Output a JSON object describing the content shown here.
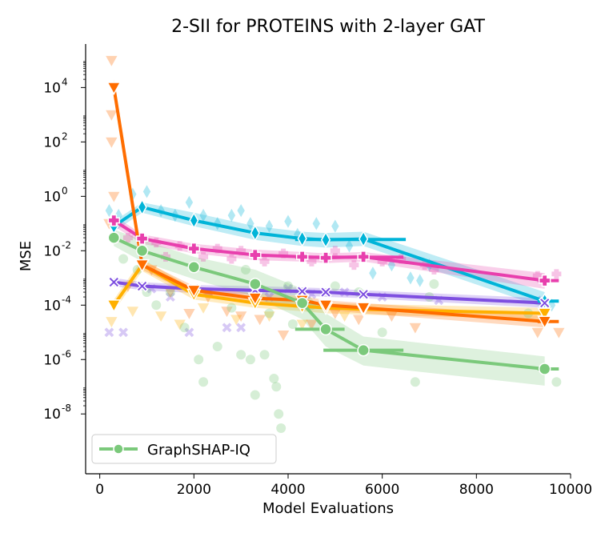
{
  "chart_data": {
    "type": "line",
    "title": "2-SII for PROTEINS with 2-layer GAT",
    "xlabel": "Model Evaluations",
    "ylabel": "MSE",
    "yscale": "log",
    "xlim": [
      -300,
      10000
    ],
    "ylim_log10": [
      -10.2,
      5.6
    ],
    "x_ticks": [
      "0",
      "2000",
      "4000",
      "6000",
      "8000",
      "10000"
    ],
    "y_ticks": [
      {
        "exp": 4,
        "label": "10",
        "sup": "4"
      },
      {
        "exp": 2,
        "label": "10",
        "sup": "2"
      },
      {
        "exp": 0,
        "label": "10",
        "sup": "0"
      },
      {
        "exp": -2,
        "label": "10",
        "sup": "-2"
      },
      {
        "exp": -4,
        "label": "10",
        "sup": "-4"
      },
      {
        "exp": -6,
        "label": "10",
        "sup": "-6"
      },
      {
        "exp": -8,
        "label": "10",
        "sup": "-8"
      }
    ],
    "legend": {
      "position": "lower-left",
      "entries": [
        "GraphSHAP-IQ"
      ]
    },
    "grid": false,
    "series": [
      {
        "name": "GraphSHAP-IQ",
        "color": "#7bc97b",
        "marker": "circle",
        "x": [
          300,
          900,
          2000,
          3300,
          4300,
          4800,
          5600,
          9450
        ],
        "y": [
          0.03,
          0.01,
          0.0025,
          0.0006,
          0.00012,
          1.3e-05,
          2.2e-06,
          4.5e-07
        ],
        "band_low": [
          0.015,
          0.004,
          0.0009,
          0.0002,
          3e-05,
          3e-06,
          6e-07,
          1.1e-07
        ],
        "band_high": [
          0.06,
          0.025,
          0.006,
          0.002,
          0.0004,
          5e-05,
          7e-06,
          1.3e-06
        ],
        "hbars": [
          {
            "x1": 4150,
            "x2": 5200,
            "y": 1.3e-05
          },
          {
            "x1": 4750,
            "x2": 6450,
            "y": 2.2e-06
          },
          {
            "x1": 9300,
            "x2": 9750,
            "y": 4.5e-07
          }
        ],
        "scatter": [
          [
            500,
            0.005
          ],
          [
            800,
            0.002
          ],
          [
            1000,
            0.0003
          ],
          [
            1200,
            0.0001
          ],
          [
            1500,
            0.0003
          ],
          [
            1800,
            1.5e-05
          ],
          [
            2100,
            1e-06
          ],
          [
            2200,
            1.5e-07
          ],
          [
            2500,
            3e-06
          ],
          [
            2800,
            8e-05
          ],
          [
            3000,
            1.5e-06
          ],
          [
            3100,
            0.002
          ],
          [
            3200,
            1e-06
          ],
          [
            3300,
            5e-08
          ],
          [
            3500,
            1.5e-06
          ],
          [
            3600,
            5e-05
          ],
          [
            3700,
            2e-07
          ],
          [
            3750,
            1e-07
          ],
          [
            3800,
            1e-08
          ],
          [
            3850,
            3e-09
          ],
          [
            4000,
            0.0005
          ],
          [
            4100,
            2e-05
          ],
          [
            4500,
            0.0001
          ],
          [
            5000,
            0.0005
          ],
          [
            5500,
            0.0003
          ],
          [
            6000,
            1e-05
          ],
          [
            6700,
            1.5e-07
          ],
          [
            7000,
            0.0002
          ],
          [
            7100,
            0.0006
          ],
          [
            9100,
            5e-05
          ],
          [
            9700,
            1.5e-07
          ]
        ]
      },
      {
        "color": "#00b4d8",
        "marker": "thin_diamond",
        "x": [
          300,
          900,
          2000,
          3300,
          4300,
          4800,
          5600,
          6500,
          9450
        ],
        "y": [
          0.08,
          0.4,
          0.13,
          0.045,
          0.028,
          0.025,
          0.027,
          null,
          0.00014
        ],
        "line_x": [
          300,
          900,
          2000,
          3300,
          4300,
          4800,
          5600,
          9450
        ],
        "line_y": [
          0.08,
          0.4,
          0.13,
          0.045,
          0.028,
          0.025,
          0.027,
          0.00014
        ],
        "band_low": [
          0.05,
          0.25,
          0.08,
          0.025,
          0.015,
          0.013,
          0.015,
          8e-05
        ],
        "band_high": [
          0.12,
          0.6,
          0.25,
          0.08,
          0.05,
          0.045,
          0.05,
          0.0003
        ],
        "hbars": [
          {
            "x1": 4150,
            "x2": 6500,
            "y": 0.026
          },
          {
            "x1": 9300,
            "x2": 9750,
            "y": 0.00014
          }
        ],
        "scatter": [
          [
            200,
            0.3
          ],
          [
            400,
            0.2
          ],
          [
            700,
            1.2
          ],
          [
            1000,
            1.5
          ],
          [
            1300,
            0.3
          ],
          [
            1600,
            0.2
          ],
          [
            1900,
            0.6
          ],
          [
            2200,
            0.2
          ],
          [
            2500,
            0.1
          ],
          [
            2800,
            0.2
          ],
          [
            3000,
            0.3
          ],
          [
            3200,
            0.1
          ],
          [
            3600,
            0.08
          ],
          [
            4000,
            0.12
          ],
          [
            4200,
            0.04
          ],
          [
            4600,
            0.1
          ],
          [
            5000,
            0.08
          ],
          [
            5300,
            0.015
          ],
          [
            5800,
            0.0015
          ],
          [
            6200,
            0.003
          ],
          [
            6600,
            0.001
          ],
          [
            6800,
            0.0008
          ],
          [
            7000,
            0.003
          ],
          [
            9600,
            0.0001
          ]
        ]
      },
      {
        "color": "#e83fad",
        "marker": "plus",
        "x": [
          300,
          900,
          2000,
          3300,
          4300,
          4800,
          5600,
          9450
        ],
        "y": [
          0.13,
          0.028,
          0.012,
          0.007,
          0.006,
          0.0055,
          0.006,
          0.0008
        ],
        "band_low": [
          0.08,
          0.018,
          0.008,
          0.0045,
          0.004,
          0.0035,
          0.004,
          0.0004
        ],
        "band_high": [
          0.2,
          0.04,
          0.018,
          0.011,
          0.009,
          0.008,
          0.009,
          0.0015
        ],
        "hbars": [
          {
            "x1": 4150,
            "x2": 6450,
            "y": 0.0058
          },
          {
            "x1": 9300,
            "x2": 9750,
            "y": 0.0008
          }
        ],
        "scatter": [
          [
            600,
            0.03
          ],
          [
            1200,
            0.02
          ],
          [
            1400,
            0.006
          ],
          [
            1700,
            0.015
          ],
          [
            2200,
            0.006
          ],
          [
            2500,
            0.012
          ],
          [
            2800,
            0.005
          ],
          [
            3000,
            0.01
          ],
          [
            3500,
            0.004
          ],
          [
            3900,
            0.008
          ],
          [
            4500,
            0.004
          ],
          [
            5000,
            0.01
          ],
          [
            5400,
            0.003
          ],
          [
            6000,
            0.004
          ],
          [
            6400,
            0.005
          ],
          [
            6900,
            0.003
          ],
          [
            7100,
            0.002
          ],
          [
            9300,
            0.0012
          ],
          [
            9700,
            0.0014
          ]
        ]
      },
      {
        "color": "#7e4fe0",
        "marker": "x",
        "x": [
          300,
          900,
          2000,
          3300,
          4300,
          4800,
          5600,
          9450
        ],
        "y": [
          0.0007,
          0.0005,
          0.0004,
          0.00035,
          0.00032,
          0.0003,
          0.00025,
          0.00012
        ],
        "band_low": [
          0.0005,
          0.00035,
          0.00028,
          0.00025,
          0.00023,
          0.0002,
          0.00018,
          8e-05
        ],
        "band_high": [
          0.001,
          0.0007,
          0.00055,
          0.0005,
          0.00045,
          0.00042,
          0.00035,
          0.00018
        ],
        "hbars": [],
        "scatter": [
          [
            200,
            1e-05
          ],
          [
            500,
            1e-05
          ],
          [
            1100,
            0.0004
          ],
          [
            1500,
            0.0002
          ],
          [
            1900,
            1e-05
          ],
          [
            2300,
            0.0003
          ],
          [
            2700,
            1.5e-05
          ],
          [
            3000,
            1.5e-05
          ],
          [
            3600,
            0.0002
          ],
          [
            4000,
            0.0004
          ],
          [
            4500,
            0.00025
          ],
          [
            5200,
            0.0003
          ],
          [
            6000,
            0.0002
          ],
          [
            7200,
            0.00015
          ],
          [
            9400,
            0.00015
          ]
        ]
      },
      {
        "color": "#ff6d00",
        "marker": "triangle_down",
        "x": [
          300,
          900,
          2000,
          3300,
          4300,
          4800,
          5600,
          9450
        ],
        "y": [
          10000.0,
          0.003,
          0.00035,
          0.00018,
          0.00015,
          0.0001,
          8e-05,
          2.5e-05
        ],
        "band_low": [
          5000.0,
          0.002,
          0.00023,
          0.00012,
          0.0001,
          6.5e-05,
          5e-05,
          1.5e-05
        ],
        "band_high": [
          20000.0,
          0.0045,
          0.0005,
          0.00026,
          0.00022,
          0.00015,
          0.00012,
          4e-05
        ],
        "hbars": [
          {
            "x1": 9300,
            "x2": 9750,
            "y": 2.5e-05
          }
        ],
        "scatter": [
          [
            250,
            100000.0
          ],
          [
            250,
            1000.0
          ],
          [
            250,
            100.0
          ],
          [
            300,
            1.0
          ],
          [
            200,
            0.1
          ],
          [
            600,
            0.0005
          ],
          [
            1100,
            0.002
          ],
          [
            1500,
            0.0003
          ],
          [
            1900,
            5e-05
          ],
          [
            2300,
            0.0002
          ],
          [
            2700,
            6e-05
          ],
          [
            3000,
            4e-05
          ],
          [
            3400,
            3e-05
          ],
          [
            3900,
            8e-06
          ],
          [
            4500,
            2e-05
          ],
          [
            5000,
            5e-05
          ],
          [
            5500,
            3e-05
          ],
          [
            6200,
            4e-05
          ],
          [
            6700,
            1.5e-05
          ],
          [
            9300,
            1e-05
          ],
          [
            9750,
            1e-05
          ]
        ]
      },
      {
        "color": "#ffb000",
        "marker": "triangle_down",
        "x": [
          300,
          900,
          2000,
          3300,
          4300,
          4800,
          5600,
          9450
        ],
        "y": [
          0.0001,
          0.003,
          0.00025,
          0.00012,
          9e-05,
          8e-05,
          7e-05,
          5e-05
        ],
        "band_low": [
          6e-05,
          0.0018,
          0.00016,
          8e-05,
          6e-05,
          5e-05,
          4.5e-05,
          3e-05
        ],
        "band_high": [
          0.00016,
          0.005,
          0.0004,
          0.00018,
          0.00014,
          0.00012,
          0.00011,
          8e-05
        ],
        "hbars": [],
        "scatter": [
          [
            250,
            2.5e-05
          ],
          [
            700,
            6e-05
          ],
          [
            1300,
            4e-05
          ],
          [
            1700,
            2e-05
          ],
          [
            2200,
            8e-05
          ],
          [
            2900,
            3e-05
          ],
          [
            3600,
            4e-05
          ],
          [
            4300,
            2e-05
          ],
          [
            5200,
            4e-05
          ]
        ]
      }
    ]
  }
}
